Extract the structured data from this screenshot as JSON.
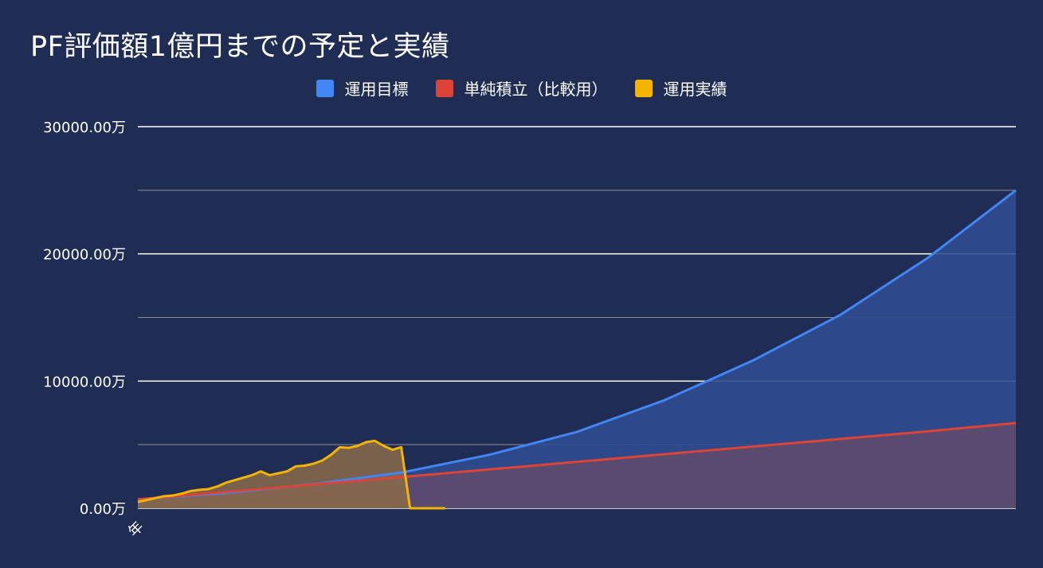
{
  "chart_data": {
    "type": "area",
    "title": "PF評価額1億円までの予定と実績",
    "xlabel": "",
    "ylabel": "",
    "x_tick_labels": [
      "年"
    ],
    "y_tick_labels": [
      "0.00万",
      "10000.00万",
      "20000.00万",
      "30000.00万"
    ],
    "y_ticks": [
      0,
      10000,
      20000,
      30000
    ],
    "y_minor_ticks": [
      5000,
      15000,
      25000
    ],
    "ylim": [
      0,
      30000
    ],
    "x_range": [
      0,
      100
    ],
    "grid": true,
    "legend_position": "top",
    "series": [
      {
        "name": "運用目標",
        "color": "#4285f4",
        "fill": "#2f4d8f",
        "x": [
          0,
          10,
          20,
          30,
          40,
          50,
          60,
          70,
          80,
          90,
          100
        ],
        "values": [
          700,
          1200,
          1900,
          2800,
          4200,
          6000,
          8500,
          11600,
          15200,
          19700,
          25000
        ]
      },
      {
        "name": "単純積立（比較用）",
        "color": "#db4437",
        "fill": "#5e4a6e",
        "x": [
          0,
          10,
          20,
          30,
          40,
          50,
          60,
          70,
          80,
          90,
          100
        ],
        "values": [
          700,
          1280,
          1870,
          2450,
          3050,
          3650,
          4250,
          4850,
          5450,
          6050,
          6700
        ]
      },
      {
        "name": "運用実績",
        "color": "#f4b400",
        "fill": "#8a6b4a",
        "x": [
          0,
          1,
          2,
          3,
          4,
          5,
          6,
          7,
          8,
          9,
          10,
          11,
          12,
          13,
          14,
          15,
          16,
          17,
          18,
          19,
          20,
          21,
          22,
          23,
          24,
          25,
          26,
          27,
          28,
          29,
          30,
          31,
          32,
          32.01,
          35
        ],
        "values": [
          500,
          650,
          800,
          950,
          1000,
          1150,
          1350,
          1450,
          1500,
          1700,
          2000,
          2200,
          2400,
          2600,
          2900,
          2600,
          2750,
          2900,
          3300,
          3350,
          3500,
          3750,
          4200,
          4800,
          4750,
          4900,
          5200,
          5300,
          4900,
          4600,
          4800,
          0,
          0,
          0,
          0
        ]
      }
    ]
  }
}
